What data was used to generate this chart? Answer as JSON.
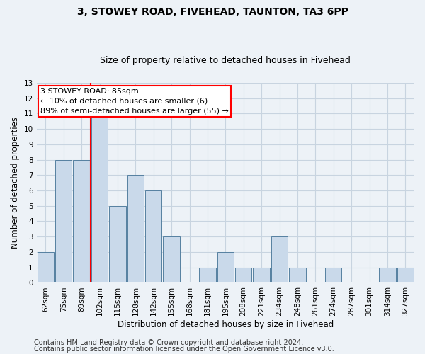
{
  "title1": "3, STOWEY ROAD, FIVEHEAD, TAUNTON, TA3 6PP",
  "title2": "Size of property relative to detached houses in Fivehead",
  "xlabel": "Distribution of detached houses by size in Fivehead",
  "ylabel": "Number of detached properties",
  "categories": [
    "62sqm",
    "75sqm",
    "89sqm",
    "102sqm",
    "115sqm",
    "128sqm",
    "142sqm",
    "155sqm",
    "168sqm",
    "181sqm",
    "195sqm",
    "208sqm",
    "221sqm",
    "234sqm",
    "248sqm",
    "261sqm",
    "274sqm",
    "287sqm",
    "301sqm",
    "314sqm",
    "327sqm"
  ],
  "values": [
    2,
    8,
    8,
    11,
    5,
    7,
    6,
    3,
    0,
    1,
    2,
    1,
    1,
    3,
    1,
    0,
    1,
    0,
    0,
    1,
    1
  ],
  "bar_color": "#c9d9ea",
  "bar_edge_color": "#5580a0",
  "red_line_after_index": 2,
  "annotation_line1": "3 STOWEY ROAD: 85sqm",
  "annotation_line2": "← 10% of detached houses are smaller (6)",
  "annotation_line3": "89% of semi-detached houses are larger (55) →",
  "footnote1": "Contains HM Land Registry data © Crown copyright and database right 2024.",
  "footnote2": "Contains public sector information licensed under the Open Government Licence v3.0.",
  "ylim": [
    0,
    13
  ],
  "yticks": [
    0,
    1,
    2,
    3,
    4,
    5,
    6,
    7,
    8,
    9,
    10,
    11,
    12,
    13
  ],
  "background_color": "#edf2f7",
  "grid_color": "#c8d4e0",
  "title1_fontsize": 10,
  "title2_fontsize": 9,
  "xlabel_fontsize": 8.5,
  "ylabel_fontsize": 8.5,
  "annotation_fontsize": 8,
  "footnote_fontsize": 7,
  "tick_fontsize": 7.5
}
